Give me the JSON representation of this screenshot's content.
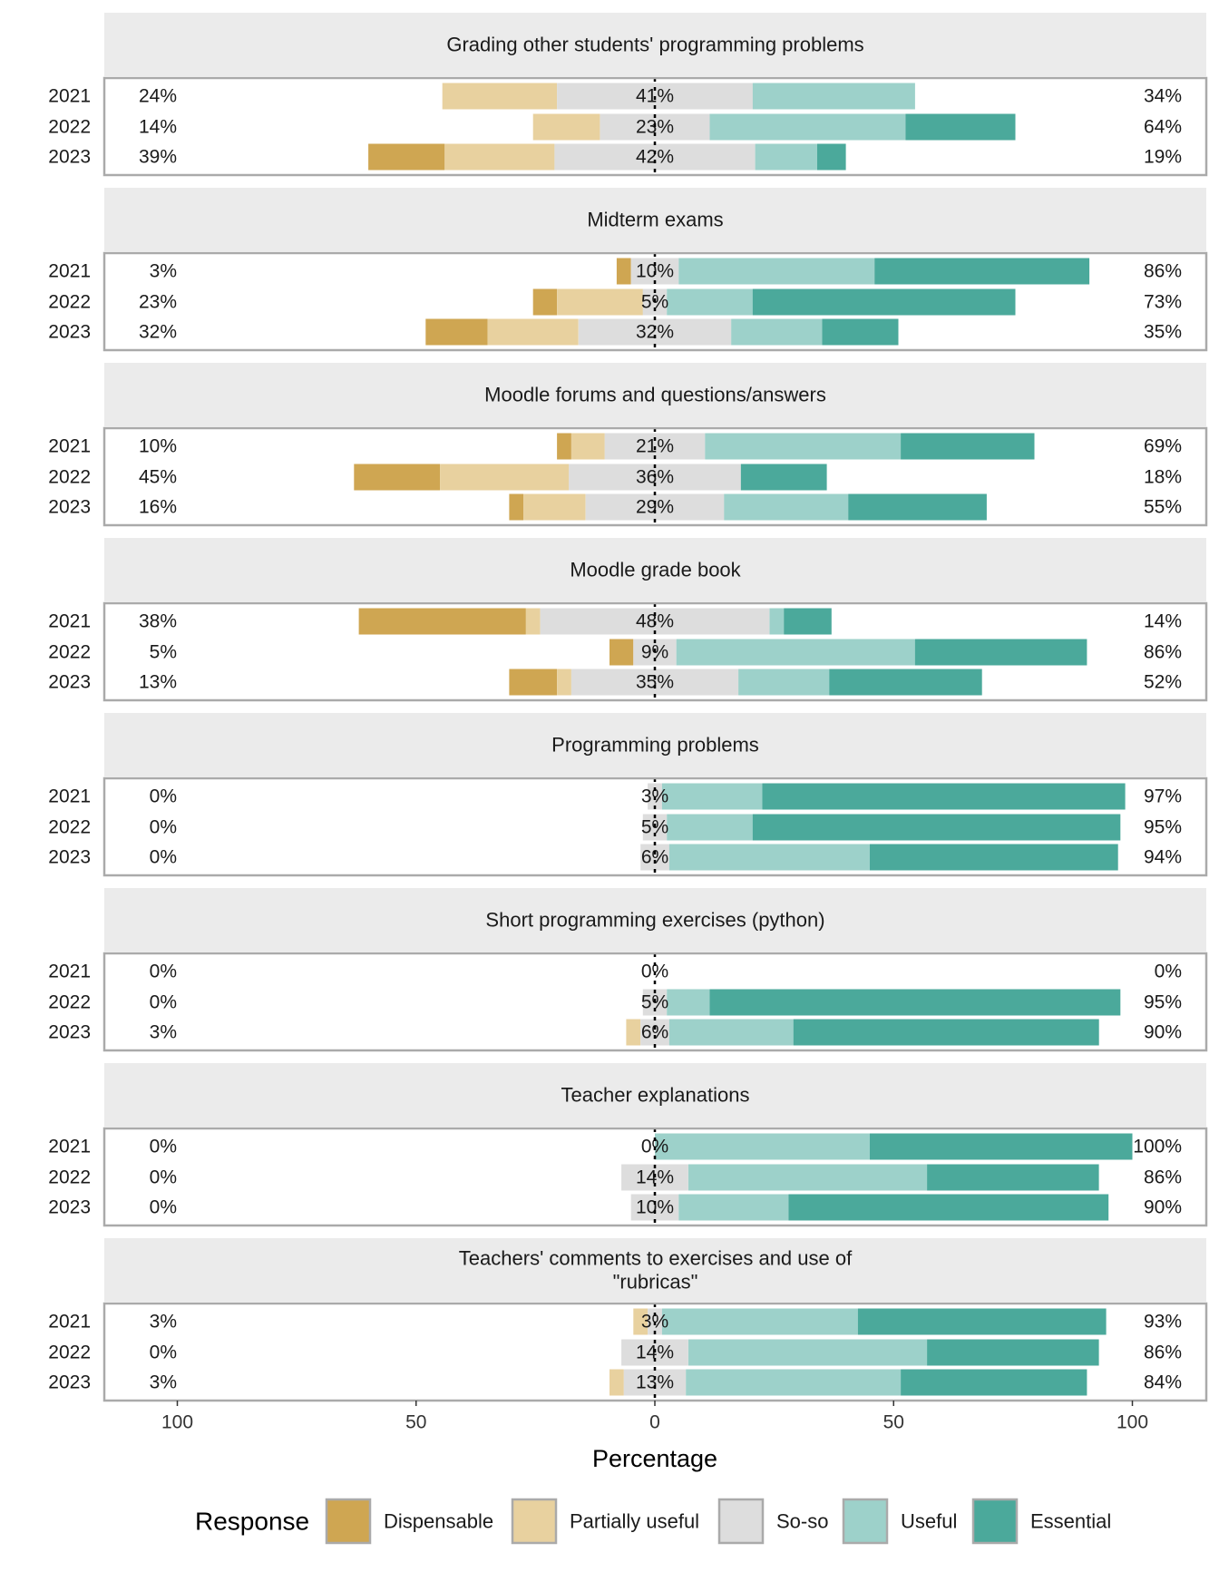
{
  "chart_data": {
    "type": "bar",
    "subtype": "diverging-likert",
    "xlabel": "Percentage",
    "x_ticks": [
      "100",
      "50",
      "0",
      "50",
      "100"
    ],
    "xlim": [
      -100,
      100
    ],
    "grid": false,
    "legend_position": "bottom",
    "legend": {
      "title": "Response",
      "items": [
        {
          "name": "Dispensable",
          "color": "#CFA652"
        },
        {
          "name": "Partially useful",
          "color": "#E8D19F"
        },
        {
          "name": "So-so",
          "color": "#DDDDDD"
        },
        {
          "name": "Useful",
          "color": "#9DD1CA"
        },
        {
          "name": "Essential",
          "color": "#4BA99B"
        }
      ]
    },
    "panels": [
      {
        "title": "Grading other students' programming problems",
        "rows": [
          {
            "year": "2021",
            "left": "24%",
            "center": "41%",
            "right": "34%",
            "values": [
              0,
              24,
              41,
              34,
              0
            ]
          },
          {
            "year": "2022",
            "left": "14%",
            "center": "23%",
            "right": "64%",
            "values": [
              0,
              14,
              23,
              41,
              23
            ]
          },
          {
            "year": "2023",
            "left": "39%",
            "center": "42%",
            "right": "19%",
            "values": [
              16,
              23,
              42,
              13,
              6
            ]
          }
        ]
      },
      {
        "title": "Midterm exams",
        "rows": [
          {
            "year": "2021",
            "left": "3%",
            "center": "10%",
            "right": "86%",
            "values": [
              3,
              0,
              10,
              41,
              45
            ]
          },
          {
            "year": "2022",
            "left": "23%",
            "center": "5%",
            "right": "73%",
            "values": [
              5,
              18,
              5,
              18,
              55
            ]
          },
          {
            "year": "2023",
            "left": "32%",
            "center": "32%",
            "right": "35%",
            "values": [
              13,
              19,
              32,
              19,
              16
            ]
          }
        ]
      },
      {
        "title": "Moodle forums and questions/answers",
        "rows": [
          {
            "year": "2021",
            "left": "10%",
            "center": "21%",
            "right": "69%",
            "values": [
              3,
              7,
              21,
              41,
              28
            ]
          },
          {
            "year": "2022",
            "left": "45%",
            "center": "36%",
            "right": "18%",
            "values": [
              18,
              27,
              36,
              0,
              18
            ]
          },
          {
            "year": "2023",
            "left": "16%",
            "center": "29%",
            "right": "55%",
            "values": [
              3,
              13,
              29,
              26,
              29
            ]
          }
        ]
      },
      {
        "title": "Moodle grade book",
        "rows": [
          {
            "year": "2021",
            "left": "38%",
            "center": "48%",
            "right": "14%",
            "values": [
              35,
              3,
              48,
              3,
              10
            ]
          },
          {
            "year": "2022",
            "left": "5%",
            "center": "9%",
            "right": "86%",
            "values": [
              5,
              0,
              9,
              50,
              36
            ]
          },
          {
            "year": "2023",
            "left": "13%",
            "center": "35%",
            "right": "52%",
            "values": [
              10,
              3,
              35,
              19,
              32
            ]
          }
        ]
      },
      {
        "title": "Programming problems",
        "rows": [
          {
            "year": "2021",
            "left": "0%",
            "center": "3%",
            "right": "97%",
            "values": [
              0,
              0,
              3,
              21,
              76
            ]
          },
          {
            "year": "2022",
            "left": "0%",
            "center": "5%",
            "right": "95%",
            "values": [
              0,
              0,
              5,
              18,
              77
            ]
          },
          {
            "year": "2023",
            "left": "0%",
            "center": "6%",
            "right": "94%",
            "values": [
              0,
              0,
              6,
              42,
              52
            ]
          }
        ]
      },
      {
        "title": "Short programming exercises (python)",
        "rows": [
          {
            "year": "2021",
            "left": "0%",
            "center": "0%",
            "right": "0%",
            "values": [
              0,
              0,
              0,
              0,
              0
            ]
          },
          {
            "year": "2022",
            "left": "0%",
            "center": "5%",
            "right": "95%",
            "values": [
              0,
              0,
              5,
              9,
              86
            ]
          },
          {
            "year": "2023",
            "left": "3%",
            "center": "6%",
            "right": "90%",
            "values": [
              0,
              3,
              6,
              26,
              64
            ]
          }
        ]
      },
      {
        "title": "Teacher explanations",
        "rows": [
          {
            "year": "2021",
            "left": "0%",
            "center": "0%",
            "right": "100%",
            "values": [
              0,
              0,
              0,
              45,
              55
            ]
          },
          {
            "year": "2022",
            "left": "0%",
            "center": "14%",
            "right": "86%",
            "values": [
              0,
              0,
              14,
              50,
              36
            ]
          },
          {
            "year": "2023",
            "left": "0%",
            "center": "10%",
            "right": "90%",
            "values": [
              0,
              0,
              10,
              23,
              67
            ]
          }
        ]
      },
      {
        "title": "Teachers' comments to exercises and use of\n\"rubricas\"",
        "rows": [
          {
            "year": "2021",
            "left": "3%",
            "center": "3%",
            "right": "93%",
            "values": [
              0,
              3,
              3,
              41,
              52
            ]
          },
          {
            "year": "2022",
            "left": "0%",
            "center": "14%",
            "right": "86%",
            "values": [
              0,
              0,
              14,
              50,
              36
            ]
          },
          {
            "year": "2023",
            "left": "3%",
            "center": "13%",
            "right": "84%",
            "values": [
              0,
              3,
              13,
              45,
              39
            ]
          }
        ]
      }
    ]
  }
}
